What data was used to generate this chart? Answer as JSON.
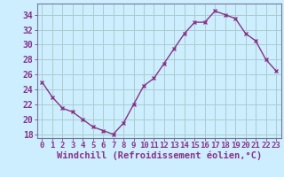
{
  "x": [
    0,
    1,
    2,
    3,
    4,
    5,
    6,
    7,
    8,
    9,
    10,
    11,
    12,
    13,
    14,
    15,
    16,
    17,
    18,
    19,
    20,
    21,
    22,
    23
  ],
  "y": [
    25.0,
    23.0,
    21.5,
    21.0,
    20.0,
    19.0,
    18.5,
    18.0,
    19.5,
    22.0,
    24.5,
    25.5,
    27.5,
    29.5,
    31.5,
    33.0,
    33.0,
    34.5,
    34.0,
    33.5,
    31.5,
    30.5,
    28.0,
    26.5
  ],
  "line_color": "#883388",
  "marker": "x",
  "marker_size": 3,
  "bg_color": "#cceeff",
  "grid_color": "#aacccc",
  "xlabel": "Windchill (Refroidissement éolien,°C)",
  "ylim": [
    17.5,
    35.5
  ],
  "yticks": [
    18,
    20,
    22,
    24,
    26,
    28,
    30,
    32,
    34
  ],
  "xticks": [
    0,
    1,
    2,
    3,
    4,
    5,
    6,
    7,
    8,
    9,
    10,
    11,
    12,
    13,
    14,
    15,
    16,
    17,
    18,
    19,
    20,
    21,
    22,
    23
  ],
  "xlabel_fontsize": 7.5,
  "ytick_fontsize": 7,
  "xtick_fontsize": 6.5,
  "line_width": 1.0,
  "spine_color": "#777799",
  "tick_color": "#883388"
}
